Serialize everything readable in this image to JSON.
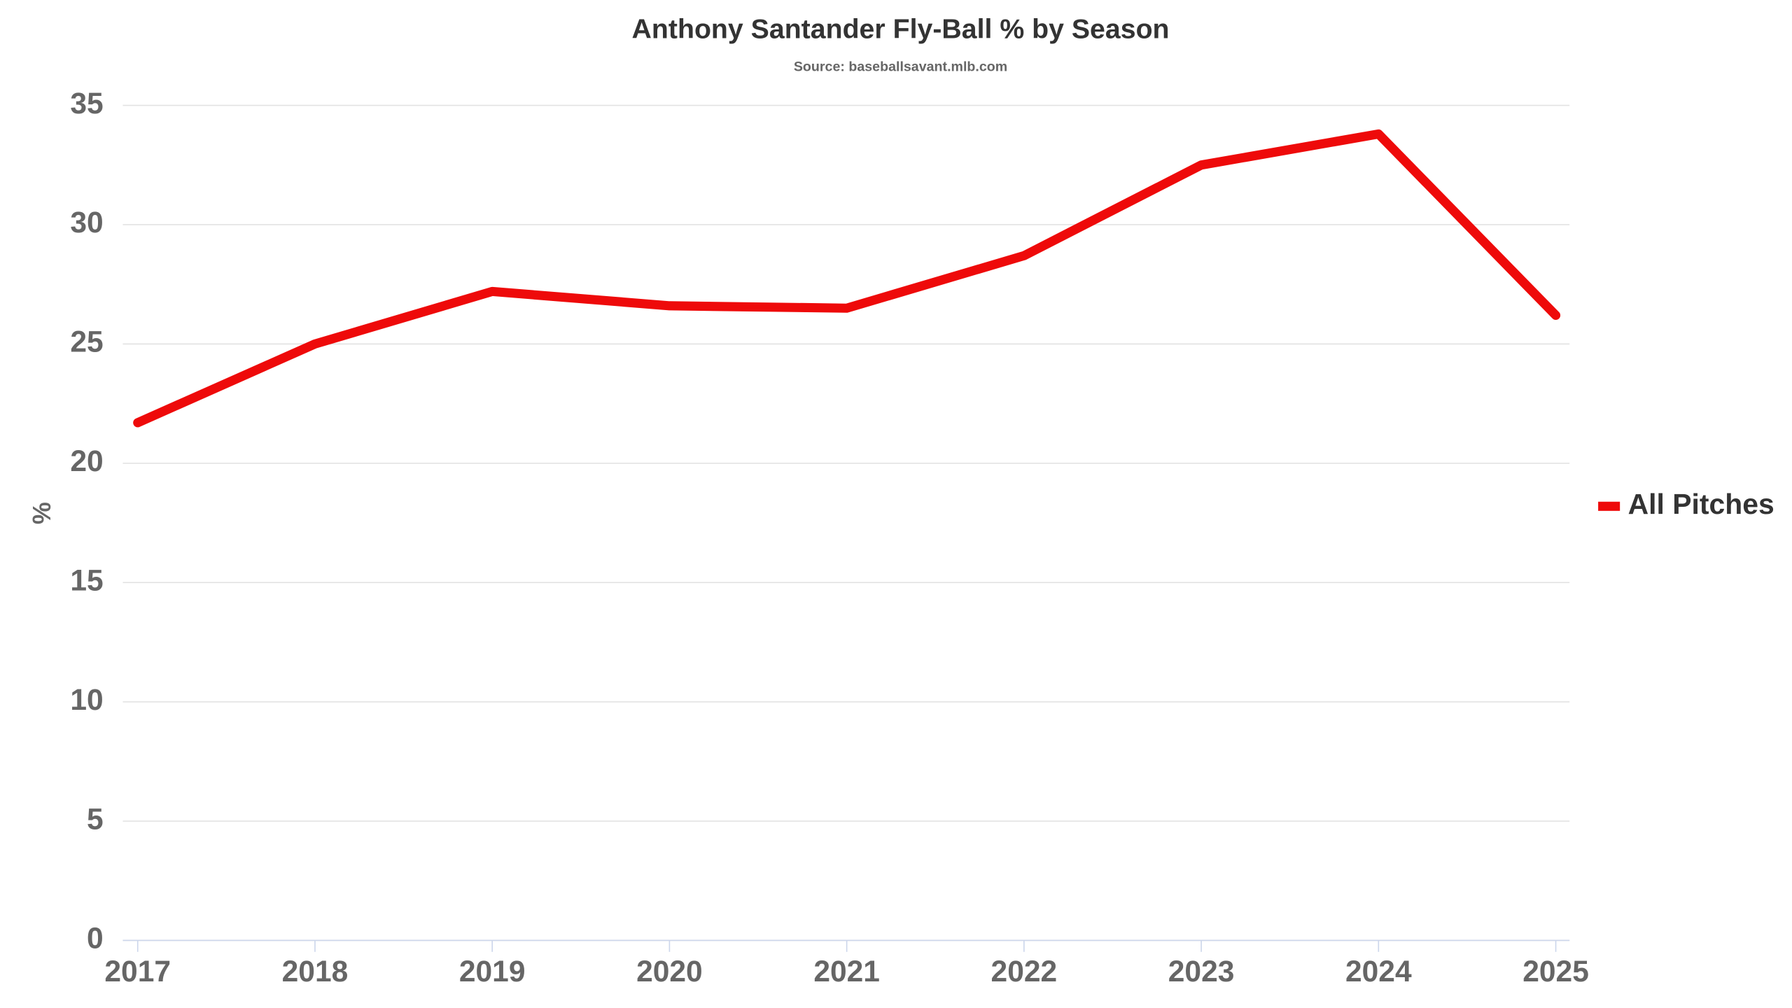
{
  "chart_data": {
    "type": "line",
    "title": "Anthony Santander Fly-Ball % by Season",
    "subtitle": "Source: baseballsavant.mlb.com",
    "y_label": "%",
    "x": [
      2017,
      2018,
      2019,
      2020,
      2021,
      2022,
      2023,
      2024,
      2025
    ],
    "xlim": [
      2017,
      2025
    ],
    "xticks": [
      2017,
      2018,
      2019,
      2020,
      2021,
      2022,
      2023,
      2024,
      2025
    ],
    "series": [
      {
        "name": "All Pitches",
        "color": "#ee0a0a",
        "values": [
          21.7,
          25.0,
          27.2,
          26.6,
          26.5,
          28.7,
          32.5,
          33.8,
          26.2
        ]
      }
    ],
    "ylim": [
      0,
      35
    ],
    "yticks": [
      0,
      5,
      10,
      15,
      20,
      25,
      30,
      35
    ],
    "grid": true,
    "legend": "right"
  }
}
